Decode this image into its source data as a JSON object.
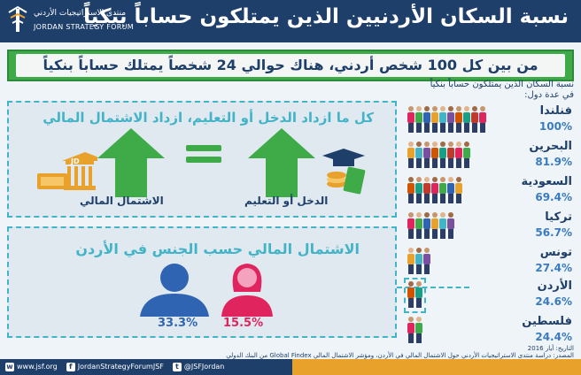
{
  "header": {
    "title": "نسبة السكان الأردنيين الذين يمتلكون حساباً بنكياً",
    "logo_ar": "منتدى الاستراتيجيات الأردني",
    "logo_en": "JORDAN STRATEGY FORUM"
  },
  "banner": {
    "text": "من بين كل 100 شخص أردني، هناك حوالي 24 شخصاً يمتلك حساباً بنكياً"
  },
  "panel1": {
    "heading": "كل ما ازداد الدخل أو التعليم، ازداد الاشتمال المالي",
    "left_label": "الاشتمال المالي",
    "right_label": "الدخل أو التعليم",
    "currency_text": "JD"
  },
  "panel2": {
    "heading": "الاشتمال المالي حسب الجنس في الأردن",
    "male_pct": "33.3%",
    "female_pct": "15.5%"
  },
  "ranking": {
    "heading_line1": "نسبة السكان الذين يمتلكون حساباً بنكياً",
    "heading_line2": "في عدة دول:",
    "countries": [
      {
        "name": "فنلندا",
        "value": "100%",
        "share": 1.0
      },
      {
        "name": "البحرين",
        "value": "81.9%",
        "share": 0.819
      },
      {
        "name": "السعودية",
        "value": "69.4%",
        "share": 0.694
      },
      {
        "name": "تركيا",
        "value": "56.7%",
        "share": 0.567
      },
      {
        "name": "تونس",
        "value": "27.4%",
        "share": 0.274
      },
      {
        "name": "الأردن",
        "value": "24.6%",
        "share": 0.246
      },
      {
        "name": "فلسطين",
        "value": "24.4%",
        "share": 0.244
      }
    ]
  },
  "source": {
    "line1": "التاريخ: أيار 2016",
    "line2": "المصدر: دراسة منتدى الاستراتيجيات الأردني حول الاشتمال المالي في الأردن، ومؤشر الاشتمال المالي Global Findex من البنك الدولي"
  },
  "footer": {
    "site": "www.jsf.org",
    "facebook": "JordanStrategyForumJSF",
    "twitter": "@JSFJordan"
  },
  "colors": {
    "navy": "#1f3f6b",
    "green": "#3eaa48",
    "teal": "#43b3c8",
    "male_blue": "#2f64b2",
    "female_red": "#e0245e",
    "orange": "#e8a12b"
  }
}
